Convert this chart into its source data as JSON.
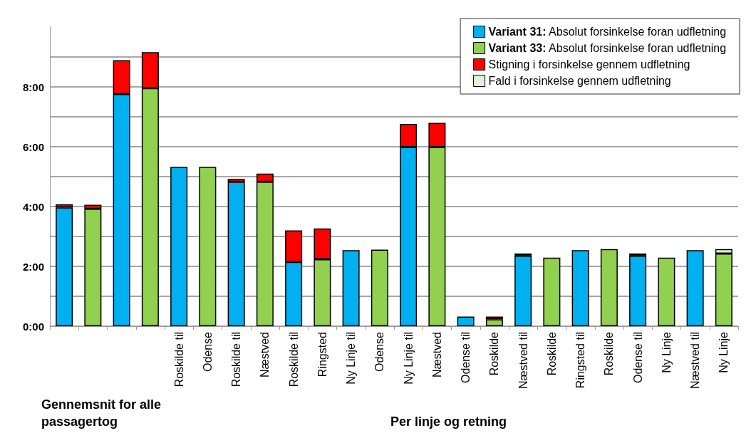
{
  "chart_data": {
    "type": "bar",
    "stacked": true,
    "categories": [
      null,
      null,
      null,
      null,
      "Roskilde til",
      "Odense",
      "Roskilde til",
      "Næstved",
      "Roskilde til",
      "Ringsted",
      "Ny Linje til",
      "Odense",
      "Ny Linje til",
      "Næstved",
      "Odense til",
      "Roskilde",
      "Næstved til",
      "Roskilde",
      "Ringsted til",
      "Roskilde",
      "Odense til",
      "Ny Linje",
      "Næstved til",
      "Ny Linje"
    ],
    "series": [
      {
        "name": "Variant 31: Absolut forsinkelse foran udfletning",
        "color": "#00b0f0",
        "values": [
          3.97,
          null,
          7.76,
          null,
          5.33,
          null,
          4.83,
          null,
          2.15,
          null,
          2.54,
          null,
          5.99,
          null,
          0.32,
          null,
          2.36,
          null,
          2.54,
          null,
          2.36,
          null,
          2.54,
          null
        ]
      },
      {
        "name": "Variant 33: Absolut forsinkelse foran udfletning",
        "color": "#92d050",
        "values": [
          null,
          3.92,
          null,
          7.96,
          null,
          5.33,
          null,
          4.83,
          null,
          2.24,
          null,
          2.56,
          null,
          5.99,
          null,
          0.23,
          null,
          2.29,
          null,
          2.58,
          null,
          2.29,
          null,
          2.43
        ]
      },
      {
        "name": "Stigning i forsinkelse gennem udfletning",
        "color": "#ff0000",
        "values": [
          0.11,
          0.14,
          1.13,
          1.2,
          null,
          null,
          0.09,
          0.27,
          1.05,
          1.03,
          null,
          null,
          0.77,
          0.81,
          null,
          0.09,
          0.07,
          null,
          null,
          null,
          0.07,
          null,
          null,
          null
        ]
      },
      {
        "name": "Fald i forsinkelse gennem udfletning",
        "color": "#e2efda",
        "values": [
          null,
          null,
          null,
          null,
          null,
          null,
          null,
          null,
          null,
          null,
          null,
          null,
          null,
          null,
          null,
          null,
          null,
          null,
          null,
          null,
          null,
          null,
          null,
          0.15
        ]
      }
    ],
    "ylim": [
      0,
      10
    ],
    "yticks": [
      {
        "value": 0,
        "label": "0:00"
      },
      {
        "value": 1,
        "label": null
      },
      {
        "value": 2,
        "label": "2:00"
      },
      {
        "value": 3,
        "label": null
      },
      {
        "value": 4,
        "label": "4:00"
      },
      {
        "value": 5,
        "label": null
      },
      {
        "value": 6,
        "label": "6:00"
      },
      {
        "value": 7,
        "label": null
      },
      {
        "value": 8,
        "label": "8:00"
      },
      {
        "value": 9,
        "label": null
      }
    ],
    "grid": "y",
    "legend": "top right",
    "annotations": [
      "Gennemsnit for alle passagertog",
      "Per linje og retning"
    ]
  }
}
